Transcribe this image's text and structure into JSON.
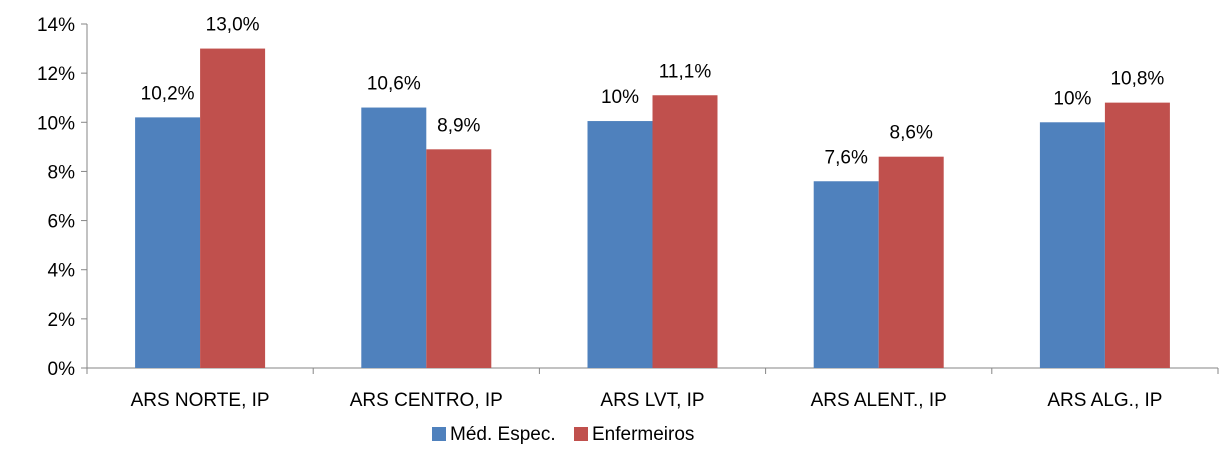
{
  "chart_data": {
    "type": "bar",
    "title": "",
    "xlabel": "",
    "ylabel": "",
    "categories": [
      "ARS NORTE, IP",
      "ARS CENTRO, IP",
      "ARS LVT, IP",
      "ARS ALENT., IP",
      "ARS ALG., IP"
    ],
    "series": [
      {
        "name": "Méd. Espec.",
        "color": "#4F81BD",
        "values": [
          10.2,
          10.6,
          10.05,
          7.6,
          10.0
        ],
        "labels": [
          "10,2%",
          "10,6%",
          "10%",
          "7,6%",
          "10%"
        ]
      },
      {
        "name": "Enfermeiros",
        "color": "#C0504D",
        "values": [
          13.0,
          8.9,
          11.1,
          8.6,
          10.8
        ],
        "labels": [
          "13,0%",
          "8,9%",
          "11,1%",
          "8,6%",
          "10,8%"
        ]
      }
    ],
    "ylim": [
      0,
      14
    ],
    "yticks": [
      0,
      2,
      4,
      6,
      8,
      10,
      12,
      14
    ],
    "ytick_labels": [
      "0%",
      "2%",
      "4%",
      "6%",
      "8%",
      "10%",
      "12%",
      "14%"
    ],
    "grid": false,
    "legend": "bottom"
  }
}
